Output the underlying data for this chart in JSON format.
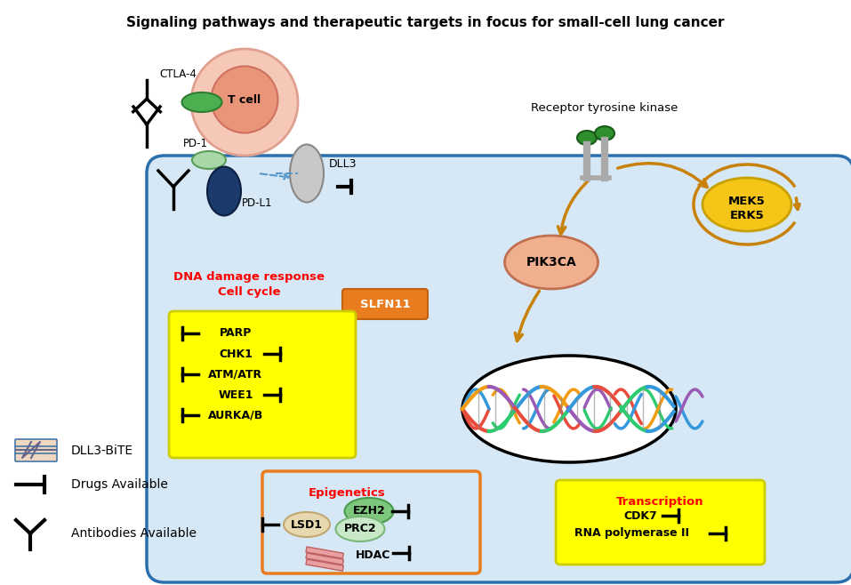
{
  "title": "Signaling pathways and therapeutic targets in focus for small-cell lung cancer",
  "background_color": "#ffffff",
  "cell_color": "#d6e8f5",
  "cell_border_color": "#2a6fad",
  "yellow_box_color": "#ffff00",
  "orange_box_color": "#e87c1e",
  "labels": {
    "ctla4": "CTLA-4",
    "pd1": "PD-1",
    "pdl1": "PD-L1",
    "dll3": "DLL3",
    "tcell": "T cell",
    "receptor_tk": "Receptor tyrosine kinase",
    "pik3ca": "PIK3CA",
    "mek5erk5": "MEK5\nERK5",
    "dna_damage": "DNA damage response\nCell cycle",
    "slfn11": "SLFN11",
    "parp": "PARP",
    "chk1": "CHK1",
    "atmatr": "ATM/ATR",
    "wee1": "WEE1",
    "aurka": "AURKA/B",
    "epigenetics": "Epigenetics",
    "ezh2": "EZH2",
    "prc2": "PRC2",
    "lsd1": "LSD1",
    "hdac": "HDAC",
    "transcription": "Transcription",
    "cdk7": "CDK7",
    "rna_pol": "RNA polymerase II",
    "dll3_bite": "DLL3-BiTE",
    "drugs": "Drugs Available",
    "antibodies": "Antibodies Available"
  }
}
